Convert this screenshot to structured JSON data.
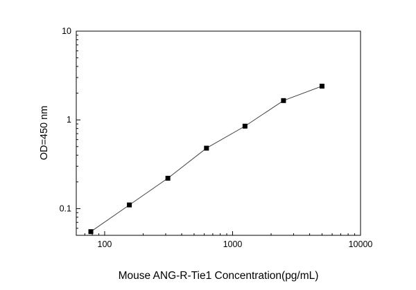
{
  "figure": {
    "background_color": "#ffffff",
    "frame_color": "#000000"
  },
  "chart_data": {
    "type": "line",
    "title": "",
    "xlabel": "Mouse ANG-R-Tie1 Concentration(pg/mL)",
    "ylabel": "OD=450 nm",
    "xscale": "log",
    "yscale": "log",
    "x": [
      78,
      156,
      312,
      625,
      1250,
      2500,
      5000
    ],
    "y": [
      0.055,
      0.11,
      0.22,
      0.48,
      0.85,
      1.65,
      2.4
    ],
    "xlim": [
      60,
      10000
    ],
    "ylim": [
      0.05,
      10
    ],
    "x_ticks": [
      100,
      1000,
      10000
    ],
    "y_ticks": [
      0.1,
      1,
      10
    ],
    "grid": false,
    "legend": false,
    "marker": "square",
    "marker_color": "#000000",
    "marker_size": 7,
    "line_color": "#404040",
    "line_width": 1
  }
}
